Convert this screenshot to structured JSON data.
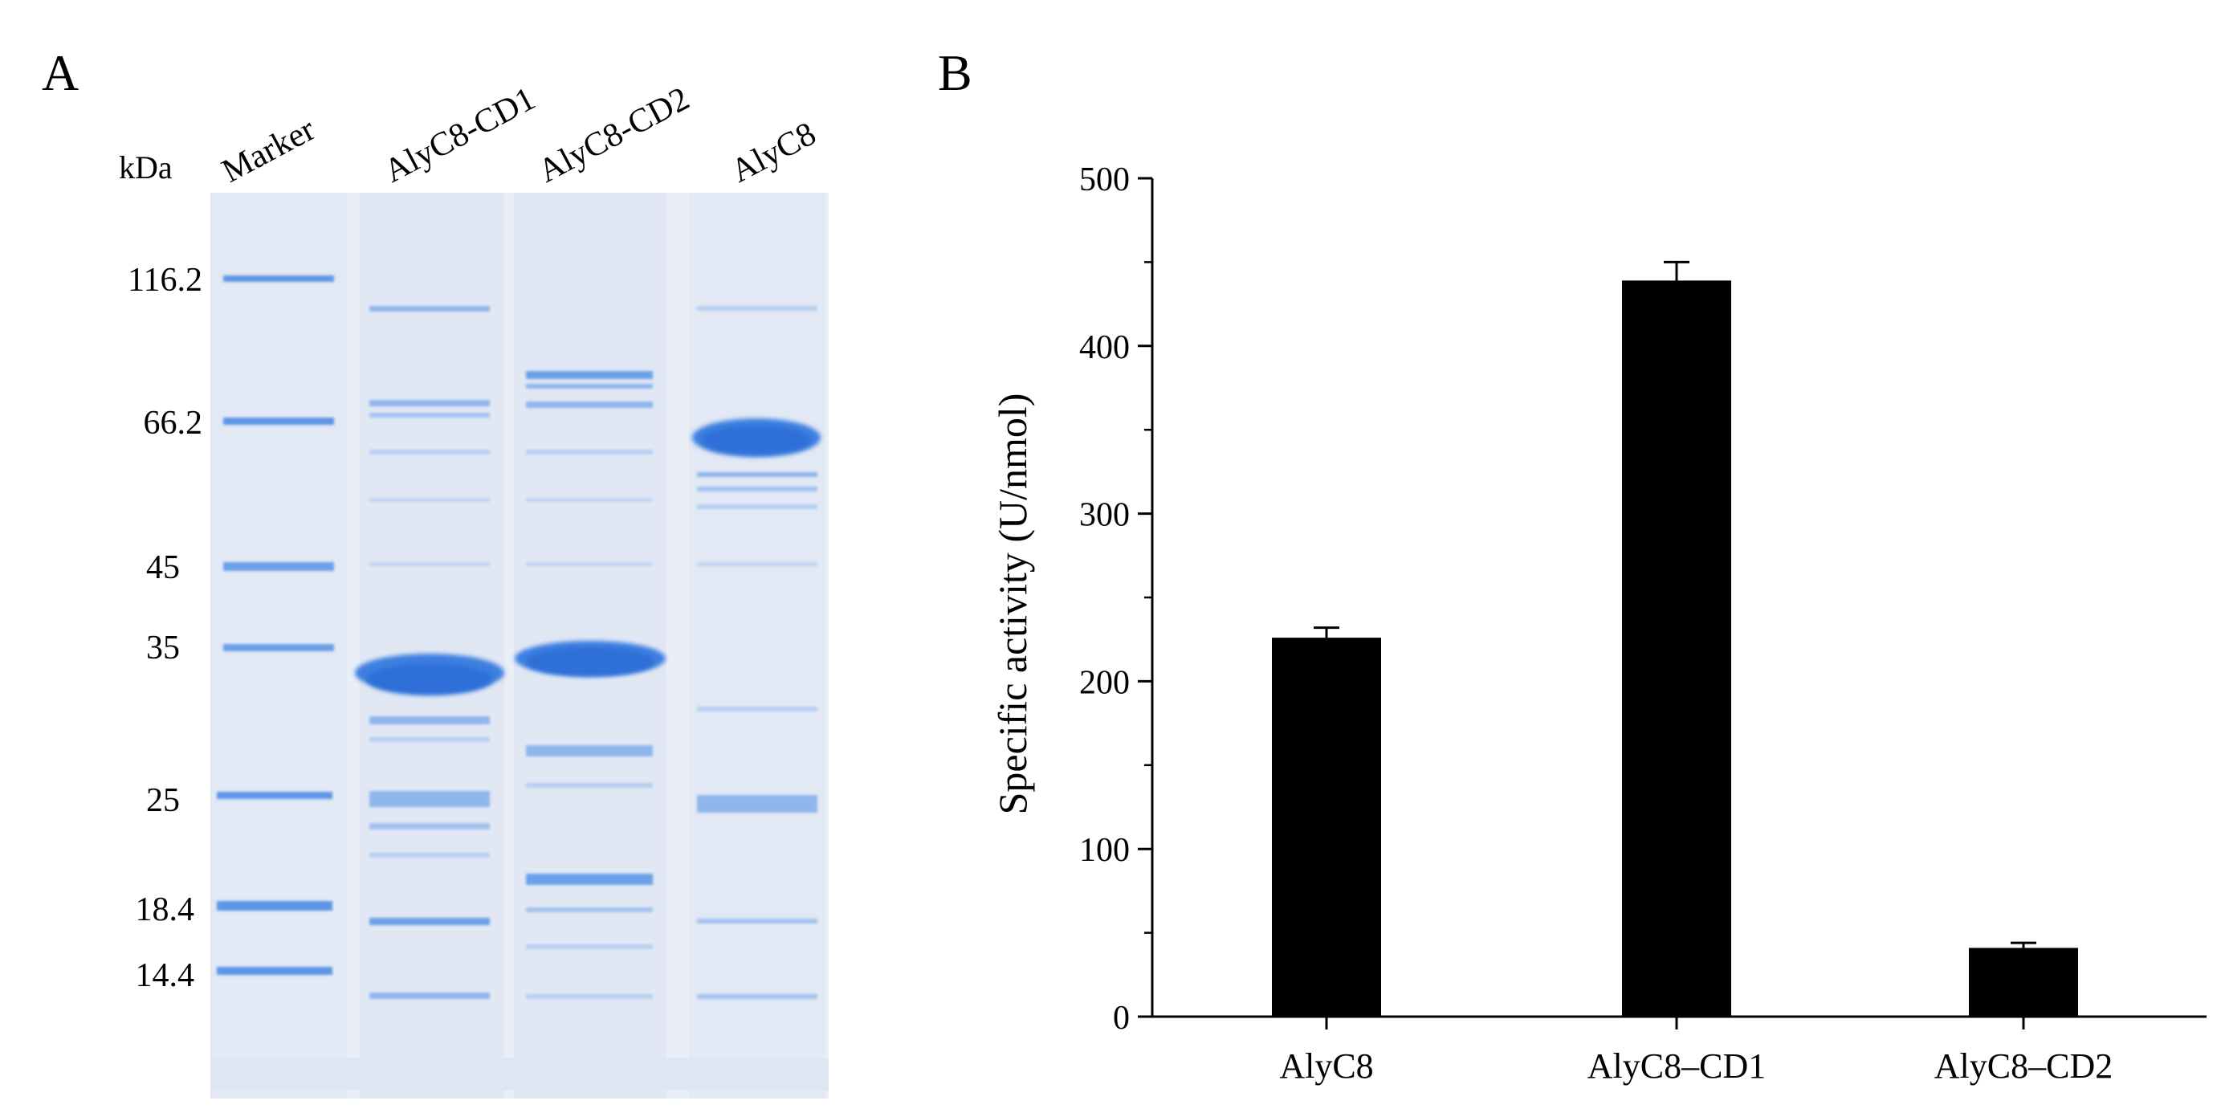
{
  "panel_a": {
    "label": "A",
    "unit_label": "kDa",
    "lane_labels": [
      "Marker",
      "AlyC8-CD1",
      "AlyC8-CD2",
      "AlyC8"
    ],
    "marker_sizes": [
      "116.2",
      "66.2",
      "45",
      "35",
      "25",
      "18.4",
      "14.4"
    ],
    "colors": {
      "gel_background": "#e9eef7",
      "band": "#3e7fe0"
    }
  },
  "panel_b": {
    "label": "B"
  },
  "chart_data": {
    "type": "bar",
    "title": "",
    "xlabel": "",
    "ylabel": "Specific activity (U/nmol)",
    "categories": [
      "AlyC8",
      "AlyC8–CD1",
      "AlyC8–CD2"
    ],
    "values": [
      226,
      439,
      41
    ],
    "errors": [
      6,
      11,
      3
    ],
    "ylim": [
      0,
      500
    ],
    "yticks": [
      0,
      100,
      200,
      300,
      400,
      500
    ],
    "bar_color": "#000000",
    "grid": false,
    "legend": "none"
  }
}
